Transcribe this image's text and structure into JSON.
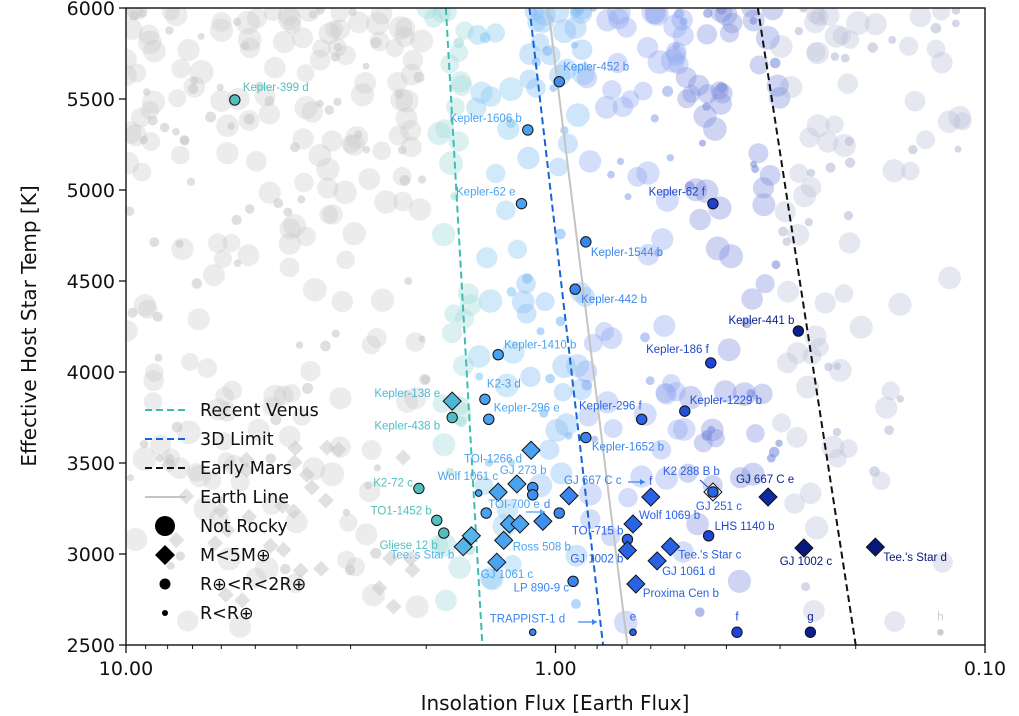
{
  "chart_data": {
    "type": "scatter",
    "xlabel": "Insolation Flux [Earth Flux]",
    "ylabel": "Effective Host Star Temp [K]",
    "x_scale": "log",
    "x_reversed": true,
    "xlim": [
      10,
      0.1
    ],
    "ylim": [
      2500,
      6000
    ],
    "x_ticks": [
      {
        "value": 10,
        "label": "10.00"
      },
      {
        "value": 1,
        "label": "1.00"
      },
      {
        "value": 0.1,
        "label": "0.10"
      }
    ],
    "y_ticks": [
      {
        "value": 2500,
        "label": "2500"
      },
      {
        "value": 3000,
        "label": "3000"
      },
      {
        "value": 3500,
        "label": "3500"
      },
      {
        "value": 4000,
        "label": "4000"
      },
      {
        "value": 4500,
        "label": "4500"
      },
      {
        "value": 5000,
        "label": "5000"
      },
      {
        "value": 5500,
        "label": "5500"
      },
      {
        "value": 6000,
        "label": "6000"
      }
    ],
    "grid": false,
    "legend_position": "lower-left",
    "lines": [
      {
        "name": "Recent Venus",
        "style": "dashed",
        "color": "#3dbdb0",
        "points": [
          [
            1.8,
            6000
          ],
          [
            1.48,
            2500
          ]
        ]
      },
      {
        "name": "3D Limit",
        "style": "dashed",
        "color": "#1565d8",
        "points": [
          [
            1.15,
            6000
          ],
          [
            0.775,
            2500
          ]
        ]
      },
      {
        "name": "Early Mars",
        "style": "dashed",
        "color": "#111111",
        "points": [
          [
            0.338,
            6000
          ],
          [
            0.2,
            2500
          ]
        ]
      },
      {
        "name": "Earth Line",
        "style": "solid",
        "color": "#c4c4c4",
        "points": [
          [
            1.04,
            6000
          ],
          [
            0.68,
            2500
          ]
        ]
      }
    ],
    "marker_legend": [
      {
        "name": "Not Rocky",
        "shape": "circle",
        "size": "large"
      },
      {
        "name": "M<5M⊕",
        "shape": "diamond",
        "size": "diamond"
      },
      {
        "name": "R⊕<R<2R⊕",
        "shape": "circle",
        "size": "medium"
      },
      {
        "name": "R<R⊕",
        "shape": "circle",
        "size": "small"
      }
    ],
    "planets": [
      {
        "name": "Kepler-399 d",
        "flux": 5.58,
        "temp": 5495,
        "shape": "circle",
        "size": "medium",
        "color": "#52bfbd"
      },
      {
        "name": "Kepler-452 b",
        "flux": 0.98,
        "temp": 5595,
        "shape": "circle",
        "size": "medium",
        "color": "#3f8ff0"
      },
      {
        "name": "Kepler-1606 b",
        "flux": 1.16,
        "temp": 5330,
        "shape": "circle",
        "size": "medium",
        "color": "#4aa3f0"
      },
      {
        "name": "Kepler-62 e",
        "flux": 1.2,
        "temp": 4925,
        "shape": "circle",
        "size": "medium",
        "color": "#4aa3f0"
      },
      {
        "name": "Kepler-62 f",
        "flux": 0.43,
        "temp": 4925,
        "shape": "circle",
        "size": "medium",
        "color": "#1e3fd0"
      },
      {
        "name": "Kepler-1544 b",
        "flux": 0.85,
        "temp": 4715,
        "shape": "circle",
        "size": "medium",
        "color": "#3a86ee"
      },
      {
        "name": "Kepler-442 b",
        "flux": 0.9,
        "temp": 4455,
        "shape": "circle",
        "size": "medium",
        "color": "#3a86ee"
      },
      {
        "name": "Kepler-441 b",
        "flux": 0.272,
        "temp": 4225,
        "shape": "circle",
        "size": "medium",
        "color": "#0a2290"
      },
      {
        "name": "Kepler-186 f",
        "flux": 0.435,
        "temp": 4050,
        "shape": "circle",
        "size": "medium",
        "color": "#1e45d6"
      },
      {
        "name": "Kepler-1410 b",
        "flux": 1.36,
        "temp": 4095,
        "shape": "circle",
        "size": "medium",
        "color": "#4aa3f0"
      },
      {
        "name": "Kepler-1229 b",
        "flux": 0.5,
        "temp": 3785,
        "shape": "circle",
        "size": "medium",
        "color": "#2250d8"
      },
      {
        "name": "Kepler-296 f",
        "flux": 0.63,
        "temp": 3740,
        "shape": "circle",
        "size": "medium",
        "color": "#2a62e6"
      },
      {
        "name": "Kepler-296 e",
        "flux": 1.43,
        "temp": 3740,
        "shape": "circle",
        "size": "medium",
        "color": "#4aa3f0"
      },
      {
        "name": "Kepler-1652 b",
        "flux": 0.85,
        "temp": 3640,
        "shape": "circle",
        "size": "medium",
        "color": "#3a86ee"
      },
      {
        "name": "K2-3 d",
        "flux": 1.46,
        "temp": 3850,
        "shape": "circle",
        "size": "medium",
        "color": "#4aa3f0"
      },
      {
        "name": "Kepler-138 e",
        "flux": 1.74,
        "temp": 3840,
        "shape": "diamond",
        "size": "diamond",
        "color": "#4fb6d6"
      },
      {
        "name": "Kepler-438 b",
        "flux": 1.74,
        "temp": 3750,
        "shape": "circle",
        "size": "medium",
        "color": "#4fbcc8"
      },
      {
        "name": "TOI-1266 d",
        "flux": 1.14,
        "temp": 3570,
        "shape": "diamond",
        "size": "diamond",
        "color": "#4aa3f0"
      },
      {
        "name": "K2-72 c",
        "flux": 2.08,
        "temp": 3360,
        "shape": "circle",
        "size": "medium",
        "color": "#52bfbd"
      },
      {
        "name": "Wolf 1061 c",
        "flux": 1.36,
        "temp": 3340,
        "shape": "diamond",
        "size": "diamond",
        "color": "#4aa3f0"
      },
      {
        "name": "",
        "flux": 1.51,
        "temp": 3335,
        "shape": "circle",
        "size": "small",
        "color": "#4aa3f0"
      },
      {
        "name": "GJ 273 b",
        "flux": 1.23,
        "temp": 3385,
        "shape": "diamond",
        "size": "diamond",
        "color": "#4aa3f0"
      },
      {
        "name": "",
        "flux": 1.13,
        "temp": 3365,
        "shape": "circle",
        "size": "medium",
        "color": "#3f8ff0"
      },
      {
        "name": "",
        "flux": 1.13,
        "temp": 3325,
        "shape": "circle",
        "size": "medium",
        "color": "#3f8ff0"
      },
      {
        "name": "GJ 667 C c",
        "flux": 0.93,
        "temp": 3320,
        "shape": "diamond",
        "size": "diamond",
        "color": "#3a86ee"
      },
      {
        "name": "f",
        "flux": 0.6,
        "temp": 3313,
        "shape": "diamond",
        "size": "diamond",
        "color": "#2a62e6"
      },
      {
        "name": "TOI-700 e",
        "flux": 1.45,
        "temp": 3225,
        "shape": "circle",
        "size": "medium",
        "color": "#4aa3f0"
      },
      {
        "name": "d",
        "flux": 0.98,
        "temp": 3225,
        "shape": "circle",
        "size": "medium",
        "color": "#3a86ee"
      },
      {
        "name": "",
        "flux": 1.28,
        "temp": 3165,
        "shape": "diamond",
        "size": "diamond",
        "color": "#4aa3f0"
      },
      {
        "name": "",
        "flux": 1.21,
        "temp": 3165,
        "shape": "diamond",
        "size": "diamond",
        "color": "#4aa3f0"
      },
      {
        "name": "",
        "flux": 1.07,
        "temp": 3180,
        "shape": "diamond",
        "size": "diamond",
        "color": "#3f8ff0"
      },
      {
        "name": "Ross 508 b",
        "flux": 1.32,
        "temp": 3075,
        "shape": "diamond",
        "size": "diamond",
        "color": "#4aa3f0"
      },
      {
        "name": "TO1-1452 b",
        "flux": 1.89,
        "temp": 3185,
        "shape": "circle",
        "size": "medium",
        "color": "#52bfbd"
      },
      {
        "name": "Gliese 12 b",
        "flux": 1.82,
        "temp": 3115,
        "shape": "circle",
        "size": "medium",
        "color": "#52bfbd"
      },
      {
        "name": "",
        "flux": 1.57,
        "temp": 3100,
        "shape": "diamond",
        "size": "diamond",
        "color": "#55b5e8"
      },
      {
        "name": "Tee.'s Star b",
        "flux": 1.64,
        "temp": 3040,
        "shape": "diamond",
        "size": "diamond",
        "color": "#55b5e8"
      },
      {
        "name": "GJ 1061 c",
        "flux": 1.37,
        "temp": 2955,
        "shape": "diamond",
        "size": "diamond",
        "color": "#4aa3f0"
      },
      {
        "name": "LP 890-9 c",
        "flux": 0.91,
        "temp": 2850,
        "shape": "circle",
        "size": "medium",
        "color": "#3a86ee"
      },
      {
        "name": "TRAPPIST-1 d",
        "flux": 1.13,
        "temp": 2570,
        "shape": "circle",
        "size": "small",
        "color": "#3a86ee"
      },
      {
        "name": "e",
        "flux": 0.66,
        "temp": 2570,
        "shape": "circle",
        "size": "small",
        "color": "#2a62e6"
      },
      {
        "name": "f",
        "flux": 0.378,
        "temp": 2570,
        "shape": "circle",
        "size": "medium",
        "color": "#1e45d6"
      },
      {
        "name": "g",
        "flux": 0.255,
        "temp": 2570,
        "shape": "circle",
        "size": "medium",
        "color": "#0a2290"
      },
      {
        "name": "h",
        "flux": 0.127,
        "temp": 2570,
        "shape": "circle",
        "size": "small",
        "color": "#cccccc"
      },
      {
        "name": "TOI-715 b",
        "flux": 0.68,
        "temp": 3080,
        "shape": "circle",
        "size": "medium",
        "color": "#2a62e6"
      },
      {
        "name": "GJ 1002 b",
        "flux": 0.68,
        "temp": 3020,
        "shape": "diamond",
        "size": "diamond",
        "color": "#2a62e6"
      },
      {
        "name": "Wolf 1069 b",
        "flux": 0.66,
        "temp": 3165,
        "shape": "diamond",
        "size": "diamond",
        "color": "#2a62e6"
      },
      {
        "name": "GJ 251 c",
        "flux": 0.43,
        "temp": 3341,
        "shape": "diamond",
        "size": "diamond",
        "color": "#e8eefc"
      },
      {
        "name": "K2 288 B b",
        "flux": 0.43,
        "temp": 3341,
        "shape": "circle",
        "size": "medium",
        "color": "#2a62e6"
      },
      {
        "name": "GJ 667 C e",
        "flux": 0.32,
        "temp": 3313,
        "shape": "diamond",
        "size": "diamond",
        "color": "#0d2aa0"
      },
      {
        "name": "LHS 1140 b",
        "flux": 0.44,
        "temp": 3100,
        "shape": "circle",
        "size": "medium",
        "color": "#1e45d6"
      },
      {
        "name": "Tee.'s Star c",
        "flux": 0.54,
        "temp": 3040,
        "shape": "diamond",
        "size": "diamond",
        "color": "#2a62e6"
      },
      {
        "name": "GJ 1061 d",
        "flux": 0.58,
        "temp": 2962,
        "shape": "diamond",
        "size": "diamond",
        "color": "#2a62e6"
      },
      {
        "name": "Proxima Cen b",
        "flux": 0.65,
        "temp": 2835,
        "shape": "diamond",
        "size": "diamond",
        "color": "#2a62e6"
      },
      {
        "name": "GJ 1002 c",
        "flux": 0.264,
        "temp": 3033,
        "shape": "diamond",
        "size": "diamond",
        "color": "#07177a"
      },
      {
        "name": "Tee.'s Star d",
        "flux": 0.18,
        "temp": 3038,
        "shape": "diamond",
        "size": "diamond",
        "color": "#07177a"
      }
    ]
  }
}
